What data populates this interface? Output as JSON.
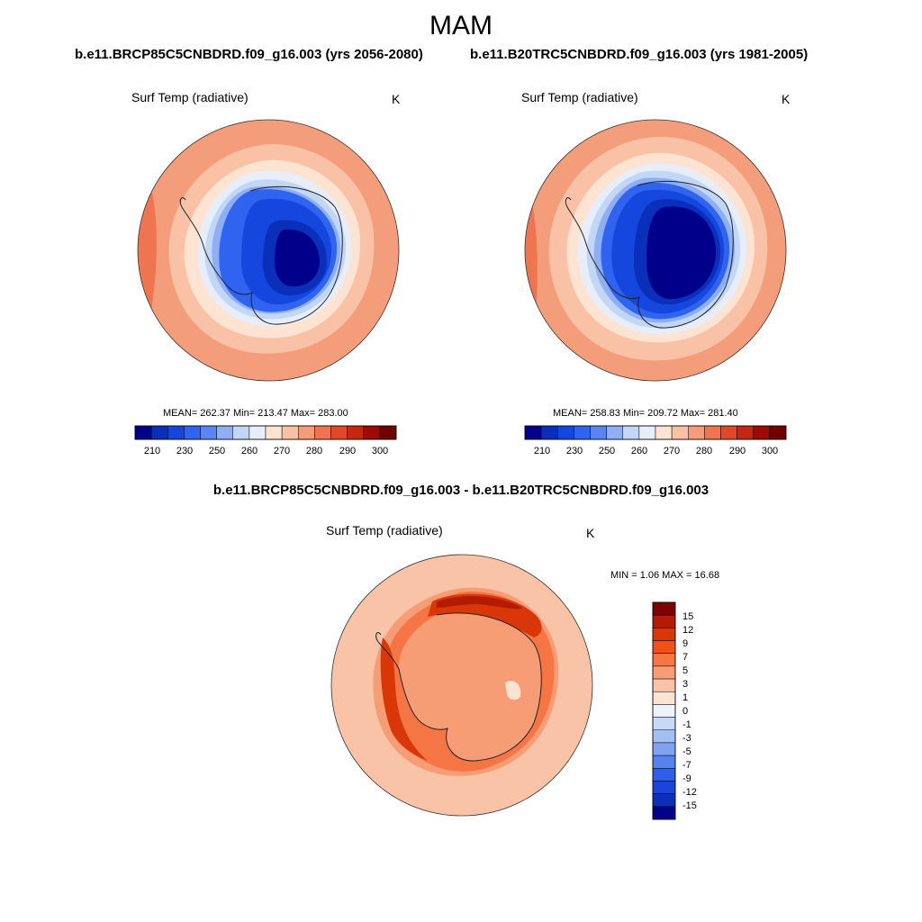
{
  "title": "MAM",
  "panels": [
    {
      "case_title": "b.e11.BRCP85C5CNBDRD.f09_g16.003 (yrs 2056-2080)",
      "variable": "Surf Temp (radiative)",
      "units": "K",
      "stats": "MEAN= 262.37  Min= 213.47  Max= 283.00",
      "colorbar_ticks": [
        "210",
        "230",
        "250",
        "260",
        "270",
        "280",
        "290",
        "300"
      ]
    },
    {
      "case_title": "b.e11.B20TRC5CNBDRD.f09_g16.003 (yrs 1981-2005)",
      "variable": "Surf Temp (radiative)",
      "units": "K",
      "stats": "MEAN= 258.83  Min= 209.72  Max= 281.40",
      "colorbar_ticks": [
        "210",
        "230",
        "250",
        "260",
        "270",
        "280",
        "290",
        "300"
      ]
    }
  ],
  "difference": {
    "title": "b.e11.BRCP85C5CNBDRD.f09_g16.003 - b.e11.B20TRC5CNBDRD.f09_g16.003",
    "variable": "Surf Temp (radiative)",
    "units": "K",
    "stats": "MIN =   1.06 MAX =  16.68",
    "colorbar_ticks": [
      "15",
      "12",
      "9",
      "7",
      "5",
      "3",
      "1",
      "0",
      "-1",
      "-3",
      "-5",
      "-7",
      "-9",
      "-12",
      "-15"
    ]
  },
  "colors": {
    "abs_scale": [
      "#00008b",
      "#0a2fb8",
      "#1546dd",
      "#2f63f0",
      "#5a86f2",
      "#8eaff4",
      "#c2d6f6",
      "#e8eef9",
      "#fde3d2",
      "#f9c2a6",
      "#f49d7a",
      "#ef7550",
      "#e0482a",
      "#c52810",
      "#9b0c04",
      "#6e0000"
    ],
    "diff_scale": [
      "#7d0000",
      "#b21c04",
      "#d93609",
      "#f25016",
      "#f57545",
      "#f69d76",
      "#f8c3a6",
      "#fbe3d4",
      "#eef2fa",
      "#c8d8f7",
      "#a3bff4",
      "#7da3f1",
      "#5582ef",
      "#2f5fea",
      "#1746d8",
      "#0a2fb8",
      "#00008b"
    ]
  }
}
